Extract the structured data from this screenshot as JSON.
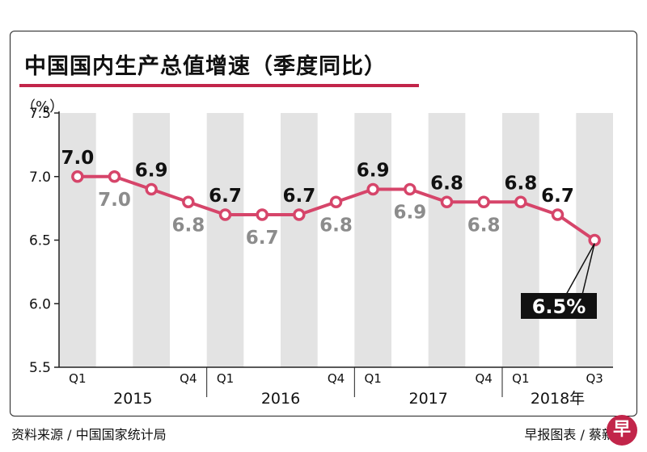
{
  "title": "中国国内生产总值增速（季度同比）",
  "unit_label": "（%）",
  "source": "资料来源 / 中国国家统计局",
  "credit": "早报图表 / 蔡新",
  "logo_text": "早",
  "colors": {
    "line": "#d6456a",
    "title_rule": "#c2254a",
    "band": "#e3e3e3",
    "label_dark": "#111111",
    "label_gray": "#8c8c8c",
    "callout_bg": "#111111"
  },
  "callout": "6.5%",
  "chart_data": {
    "type": "line",
    "title": "中国国内生产总值增速（季度同比）",
    "ylabel": "（%）",
    "ylim": [
      5.5,
      7.5
    ],
    "yticks": [
      "5.5",
      "6.0",
      "6.5",
      "7.0",
      "7.5"
    ],
    "grid": false,
    "x": [
      "2015 Q1",
      "2015 Q2",
      "2015 Q3",
      "2015 Q4",
      "2016 Q1",
      "2016 Q2",
      "2016 Q3",
      "2016 Q4",
      "2017 Q1",
      "2017 Q2",
      "2017 Q3",
      "2017 Q4",
      "2018 Q1",
      "2018 Q2",
      "2018 Q3"
    ],
    "values": [
      7.0,
      7.0,
      6.9,
      6.8,
      6.7,
      6.7,
      6.7,
      6.8,
      6.9,
      6.9,
      6.8,
      6.8,
      6.8,
      6.7,
      6.5
    ],
    "data_labels": [
      "7.0",
      "7.0",
      "6.9",
      "6.8",
      "6.7",
      "6.7",
      "6.7",
      "6.8",
      "6.9",
      "6.9",
      "6.8",
      "6.8",
      "6.8",
      "6.7",
      ""
    ],
    "label_above": [
      true,
      false,
      true,
      false,
      true,
      false,
      true,
      false,
      true,
      false,
      true,
      false,
      true,
      true,
      false
    ],
    "quarter_ticks": [
      "Q1",
      "",
      "",
      "Q4",
      "Q1",
      "",
      "",
      "Q4",
      "Q1",
      "",
      "",
      "Q4",
      "Q1",
      "",
      "Q3"
    ],
    "years": [
      "2015",
      "2016",
      "2017",
      "2018年"
    ]
  }
}
